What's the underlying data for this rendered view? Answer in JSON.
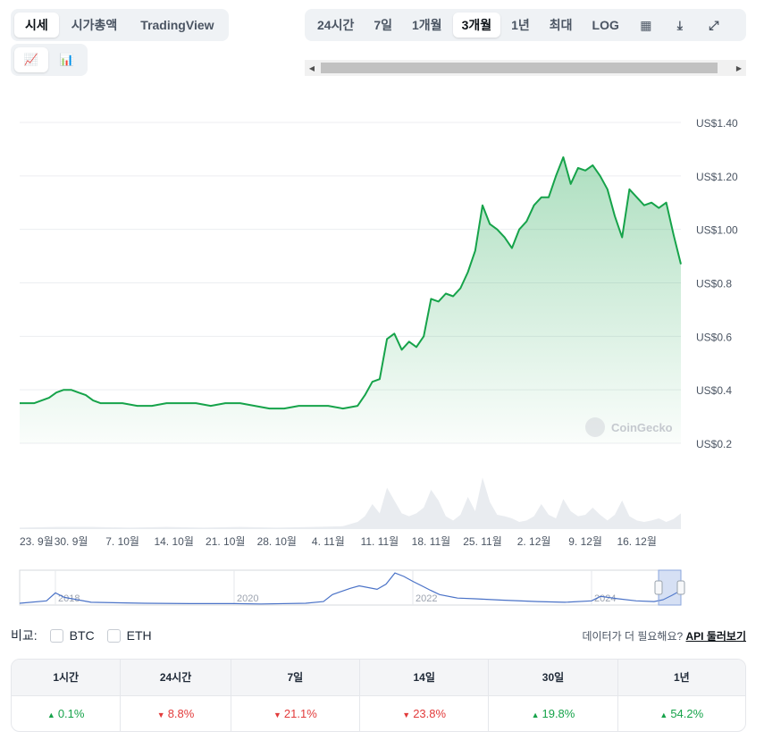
{
  "tabs": {
    "main": [
      "시세",
      "시가총액",
      "TradingView"
    ],
    "main_active": 0,
    "chart_type": [
      {
        "name": "line-chart-icon",
        "glyph": "📈"
      },
      {
        "name": "candlestick-icon",
        "glyph": "📊"
      }
    ],
    "chart_type_active": 0,
    "ranges": [
      "24시간",
      "7일",
      "1개월",
      "3개월",
      "1년",
      "최대",
      "LOG"
    ],
    "range_active": 3
  },
  "icons": {
    "calendar": "▦",
    "download": "⤓",
    "expand": "⤢",
    "scroll_left": "◀",
    "scroll_right": "▶"
  },
  "watermark": "CoinGecko",
  "compare": {
    "label": "비교:",
    "options": [
      "BTC",
      "ETH"
    ]
  },
  "api": {
    "text": "데이터가 더 필요해요?",
    "link": "API 둘러보기"
  },
  "performance": [
    {
      "period": "1시간",
      "change": "0.1%",
      "direction": "up"
    },
    {
      "period": "24시간",
      "change": "8.8%",
      "direction": "down"
    },
    {
      "period": "7일",
      "change": "21.1%",
      "direction": "down"
    },
    {
      "period": "14일",
      "change": "23.8%",
      "direction": "down"
    },
    {
      "period": "30일",
      "change": "19.8%",
      "direction": "up"
    },
    {
      "period": "1년",
      "change": "54.2%",
      "direction": "up"
    }
  ],
  "chart_data": {
    "type": "area",
    "currency_prefix": "US$",
    "y_ticks": [
      1.4,
      1.2,
      1.0,
      0.8,
      0.6,
      0.4,
      0.2
    ],
    "y_tick_labels": [
      "US$1.40",
      "US$1.20",
      "US$1.00",
      "US$0.8",
      "US$0.6",
      "US$0.4",
      "US$0.2"
    ],
    "ylim": [
      0.2,
      1.4
    ],
    "x_ticks": [
      "23. 9월",
      "30. 9월",
      "7. 10월",
      "14. 10월",
      "21. 10월",
      "28. 10월",
      "4. 11월",
      "11. 11월",
      "18. 11월",
      "25. 11월",
      "2. 12월",
      "9. 12월",
      "16. 12월"
    ],
    "x_tick_days": [
      0,
      7,
      14,
      21,
      28,
      35,
      42,
      49,
      56,
      63,
      70,
      77,
      84
    ],
    "x_domain_days": [
      0,
      90
    ],
    "series": [
      {
        "color": "#16a34a",
        "points": [
          [
            0,
            0.35
          ],
          [
            2,
            0.35
          ],
          [
            4,
            0.37
          ],
          [
            5,
            0.39
          ],
          [
            6,
            0.4
          ],
          [
            7,
            0.4
          ],
          [
            8,
            0.39
          ],
          [
            9,
            0.38
          ],
          [
            10,
            0.36
          ],
          [
            11,
            0.35
          ],
          [
            12,
            0.35
          ],
          [
            14,
            0.35
          ],
          [
            16,
            0.34
          ],
          [
            18,
            0.34
          ],
          [
            20,
            0.35
          ],
          [
            22,
            0.35
          ],
          [
            24,
            0.35
          ],
          [
            26,
            0.34
          ],
          [
            28,
            0.35
          ],
          [
            30,
            0.35
          ],
          [
            32,
            0.34
          ],
          [
            34,
            0.33
          ],
          [
            36,
            0.33
          ],
          [
            38,
            0.34
          ],
          [
            40,
            0.34
          ],
          [
            42,
            0.34
          ],
          [
            44,
            0.33
          ],
          [
            46,
            0.34
          ],
          [
            47,
            0.38
          ],
          [
            48,
            0.43
          ],
          [
            49,
            0.44
          ],
          [
            50,
            0.59
          ],
          [
            51,
            0.61
          ],
          [
            52,
            0.55
          ],
          [
            53,
            0.58
          ],
          [
            54,
            0.56
          ],
          [
            55,
            0.6
          ],
          [
            56,
            0.74
          ],
          [
            57,
            0.73
          ],
          [
            58,
            0.76
          ],
          [
            59,
            0.75
          ],
          [
            60,
            0.78
          ],
          [
            61,
            0.84
          ],
          [
            62,
            0.92
          ],
          [
            63,
            1.09
          ],
          [
            64,
            1.02
          ],
          [
            65,
            1.0
          ],
          [
            66,
            0.97
          ],
          [
            67,
            0.93
          ],
          [
            68,
            1.0
          ],
          [
            69,
            1.03
          ],
          [
            70,
            1.09
          ],
          [
            71,
            1.12
          ],
          [
            72,
            1.12
          ],
          [
            73,
            1.2
          ],
          [
            74,
            1.27
          ],
          [
            75,
            1.17
          ],
          [
            76,
            1.23
          ],
          [
            77,
            1.22
          ],
          [
            78,
            1.24
          ],
          [
            79,
            1.2
          ],
          [
            80,
            1.15
          ],
          [
            81,
            1.05
          ],
          [
            82,
            0.97
          ],
          [
            83,
            1.15
          ],
          [
            84,
            1.12
          ],
          [
            85,
            1.09
          ],
          [
            86,
            1.1
          ],
          [
            87,
            1.08
          ],
          [
            88,
            1.1
          ],
          [
            89,
            0.98
          ],
          [
            90,
            0.87
          ]
        ]
      }
    ],
    "volume": [
      [
        0,
        0.02
      ],
      [
        5,
        0.03
      ],
      [
        10,
        0.03
      ],
      [
        15,
        0.02
      ],
      [
        20,
        0.03
      ],
      [
        25,
        0.02
      ],
      [
        30,
        0.03
      ],
      [
        35,
        0.02
      ],
      [
        40,
        0.03
      ],
      [
        44,
        0.04
      ],
      [
        46,
        0.1
      ],
      [
        47,
        0.18
      ],
      [
        48,
        0.35
      ],
      [
        49,
        0.22
      ],
      [
        50,
        0.58
      ],
      [
        51,
        0.4
      ],
      [
        52,
        0.22
      ],
      [
        53,
        0.18
      ],
      [
        54,
        0.22
      ],
      [
        55,
        0.3
      ],
      [
        56,
        0.55
      ],
      [
        57,
        0.4
      ],
      [
        58,
        0.18
      ],
      [
        59,
        0.12
      ],
      [
        60,
        0.2
      ],
      [
        61,
        0.45
      ],
      [
        62,
        0.25
      ],
      [
        63,
        0.72
      ],
      [
        64,
        0.38
      ],
      [
        65,
        0.2
      ],
      [
        66,
        0.18
      ],
      [
        67,
        0.15
      ],
      [
        68,
        0.1
      ],
      [
        69,
        0.12
      ],
      [
        70,
        0.18
      ],
      [
        71,
        0.35
      ],
      [
        72,
        0.2
      ],
      [
        73,
        0.15
      ],
      [
        74,
        0.42
      ],
      [
        75,
        0.25
      ],
      [
        76,
        0.18
      ],
      [
        77,
        0.2
      ],
      [
        78,
        0.3
      ],
      [
        79,
        0.2
      ],
      [
        80,
        0.12
      ],
      [
        81,
        0.2
      ],
      [
        82,
        0.4
      ],
      [
        83,
        0.18
      ],
      [
        84,
        0.12
      ],
      [
        85,
        0.1
      ],
      [
        86,
        0.12
      ],
      [
        87,
        0.15
      ],
      [
        88,
        0.1
      ],
      [
        89,
        0.14
      ],
      [
        90,
        0.22
      ]
    ],
    "navigator": {
      "labels": [
        "2018",
        "2020",
        "2022",
        "2024"
      ],
      "label_years": [
        2018,
        2020,
        2022,
        2024
      ],
      "x_domain_years": [
        2017.6,
        2025.0
      ],
      "ylim": [
        0,
        1.0
      ],
      "series": [
        [
          2017.6,
          0.05
        ],
        [
          2017.9,
          0.12
        ],
        [
          2018.0,
          0.35
        ],
        [
          2018.1,
          0.22
        ],
        [
          2018.4,
          0.08
        ],
        [
          2019.0,
          0.05
        ],
        [
          2019.5,
          0.04
        ],
        [
          2020.0,
          0.04
        ],
        [
          2020.3,
          0.03
        ],
        [
          2020.8,
          0.05
        ],
        [
          2021.0,
          0.1
        ],
        [
          2021.1,
          0.3
        ],
        [
          2021.3,
          0.48
        ],
        [
          2021.4,
          0.55
        ],
        [
          2021.6,
          0.45
        ],
        [
          2021.7,
          0.6
        ],
        [
          2021.8,
          0.92
        ],
        [
          2021.9,
          0.82
        ],
        [
          2022.0,
          0.68
        ],
        [
          2022.1,
          0.55
        ],
        [
          2022.2,
          0.42
        ],
        [
          2022.3,
          0.3
        ],
        [
          2022.5,
          0.2
        ],
        [
          2022.7,
          0.18
        ],
        [
          2023.0,
          0.14
        ],
        [
          2023.4,
          0.1
        ],
        [
          2023.7,
          0.08
        ],
        [
          2024.0,
          0.12
        ],
        [
          2024.1,
          0.25
        ],
        [
          2024.3,
          0.18
        ],
        [
          2024.5,
          0.12
        ],
        [
          2024.7,
          0.1
        ],
        [
          2024.8,
          0.15
        ],
        [
          2024.9,
          0.28
        ],
        [
          2025.0,
          0.42
        ]
      ],
      "window_years": [
        2024.75,
        2025.0
      ]
    }
  }
}
